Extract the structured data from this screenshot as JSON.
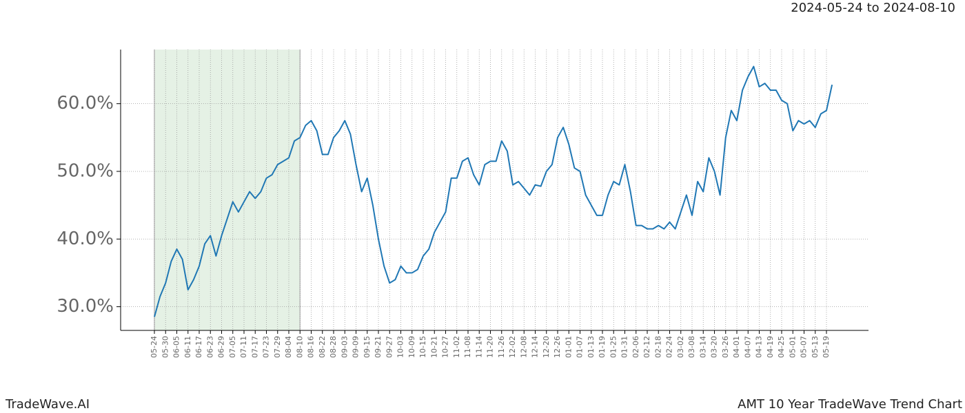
{
  "chart_data": {
    "type": "line",
    "title": "2024-05-24 to 2024-08-10",
    "footer_left": "TradeWave.AI",
    "footer_right": "AMT 10 Year TradeWave Trend Chart",
    "categories": [
      "05-24",
      null,
      "05-30",
      null,
      "06-05",
      null,
      "06-11",
      null,
      "06-17",
      null,
      "06-23",
      null,
      "06-29",
      null,
      "07-05",
      null,
      "07-11",
      null,
      "07-17",
      null,
      "07-23",
      null,
      "07-29",
      null,
      "08-04",
      null,
      "08-10",
      null,
      "08-16",
      null,
      "08-22",
      null,
      "08-28",
      null,
      "09-03",
      null,
      "09-09",
      null,
      "09-15",
      null,
      "09-21",
      null,
      "09-27",
      null,
      "10-03",
      null,
      "10-09",
      null,
      "10-15",
      null,
      "10-21",
      null,
      "10-27",
      null,
      "11-02",
      null,
      "11-08",
      null,
      "11-14",
      null,
      "11-20",
      null,
      "11-26",
      null,
      "12-02",
      null,
      "12-08",
      null,
      "12-14",
      null,
      "12-20",
      null,
      "12-26",
      null,
      "01-01",
      null,
      "01-07",
      null,
      "01-13",
      null,
      "01-19",
      null,
      "01-25",
      null,
      "01-31",
      null,
      "02-06",
      null,
      "02-12",
      null,
      "02-18",
      null,
      "02-24",
      null,
      "03-02",
      null,
      "03-08",
      null,
      "03-14",
      null,
      "03-20",
      null,
      "03-26",
      null,
      "04-01",
      null,
      "04-07",
      null,
      "04-13",
      null,
      "04-19",
      null,
      "04-25",
      null,
      "05-01",
      null,
      "05-07",
      null,
      "05-13",
      null,
      "05-19",
      null
    ],
    "series": [
      {
        "color": "#1f77b4",
        "values": [
          28.5,
          31.5,
          33.5,
          36.7,
          38.5,
          37,
          32.5,
          34,
          36,
          39.3,
          40.5,
          37.5,
          40.5,
          43,
          45.5,
          44,
          45.5,
          47,
          46,
          47,
          49,
          49.5,
          51,
          51.5,
          52,
          54.5,
          55,
          56.8,
          57.5,
          56,
          52.5,
          52.5,
          55,
          56,
          57.5,
          55.5,
          51,
          47,
          49,
          45,
          40,
          36,
          33.5,
          34,
          36,
          35,
          35,
          35.5,
          37.5,
          38.5,
          41,
          42.5,
          44,
          49,
          49,
          51.5,
          52,
          49.5,
          48,
          51,
          51.5,
          51.5,
          54.5,
          53,
          48,
          48.5,
          47.5,
          46.5,
          48,
          47.8,
          50,
          51,
          55,
          56.5,
          54,
          50.5,
          50,
          46.5,
          45,
          43.5,
          43.5,
          46.5,
          48.5,
          48,
          51,
          47,
          42,
          42,
          41.5,
          41.5,
          42,
          41.5,
          42.5,
          41.5,
          44,
          46.5,
          43.5,
          48.5,
          47,
          52,
          50,
          46.5,
          55,
          59,
          57.5,
          62,
          64,
          65.5,
          62.5,
          63,
          62,
          62,
          60.5,
          60,
          56,
          57.5,
          57,
          57.5,
          56.5,
          58.5,
          59,
          62.8
        ]
      }
    ],
    "highlight": [
      "05-24",
      "08-10"
    ],
    "highlight_color": "#e5f1e5",
    "ylim": [
      26.5,
      68
    ],
    "yticks": [
      {
        "value": 30,
        "label": "30.0%"
      },
      {
        "value": 40,
        "label": "40.0%"
      },
      {
        "value": 50,
        "label": "50.0%"
      },
      {
        "value": 60,
        "label": "60.0%"
      }
    ],
    "grid": true
  }
}
